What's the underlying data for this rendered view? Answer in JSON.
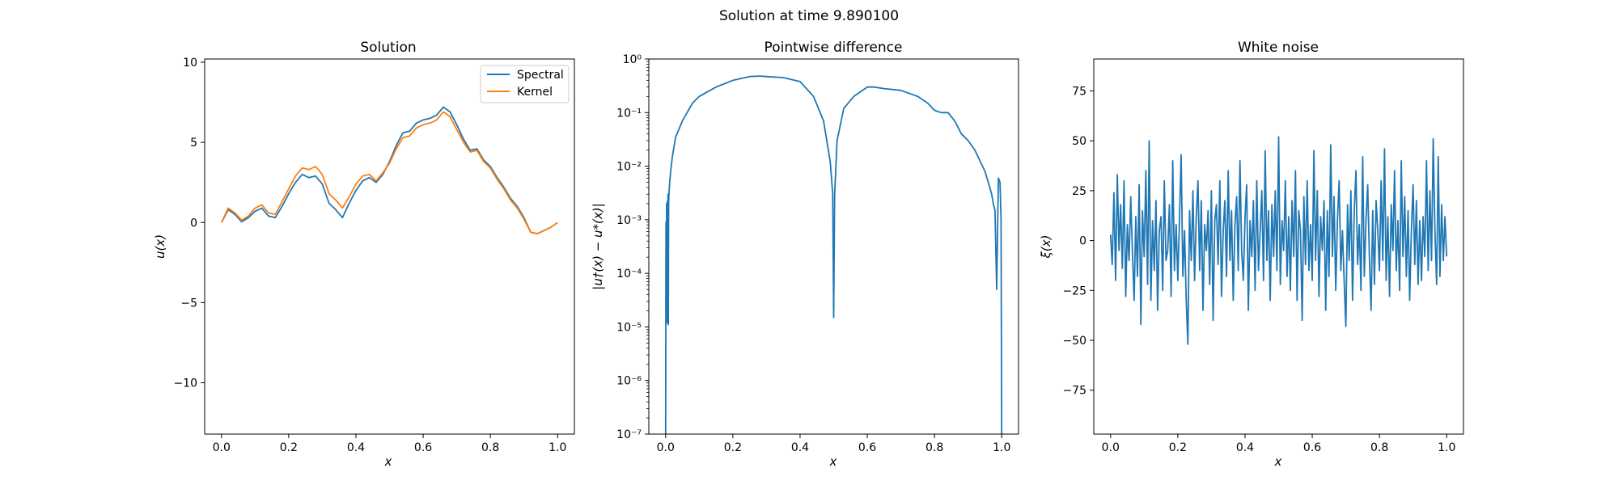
{
  "figure": {
    "suptitle": "Solution at time 9.890100"
  },
  "colors": {
    "spectral": "#1f77b4",
    "kernel": "#ff7f0e",
    "difference": "#1f77b4",
    "noise": "#1f77b4"
  },
  "chart_data": [
    {
      "type": "line",
      "title": "Solution",
      "xlabel": "x",
      "ylabel": "u(x)",
      "xlim": [
        -0.05,
        1.05
      ],
      "ylim": [
        -13.2,
        10.2
      ],
      "xticks": [
        0.0,
        0.2,
        0.4,
        0.6,
        0.8,
        1.0
      ],
      "xtick_labels": [
        "0.0",
        "0.2",
        "0.4",
        "0.6",
        "0.8",
        "1.0"
      ],
      "yticks": [
        10,
        5,
        0,
        -5,
        -10
      ],
      "ytick_labels": [
        "10",
        "5",
        "0",
        "−5",
        "−10"
      ],
      "legend": {
        "placement": "top-right",
        "entries": [
          "Spectral",
          "Kernel"
        ]
      },
      "series": [
        {
          "name": "Spectral",
          "x": [
            0.0,
            0.02,
            0.04,
            0.06,
            0.08,
            0.1,
            0.12,
            0.14,
            0.16,
            0.18,
            0.2,
            0.22,
            0.24,
            0.26,
            0.28,
            0.3,
            0.32,
            0.34,
            0.36,
            0.38,
            0.4,
            0.42,
            0.44,
            0.46,
            0.48,
            0.5,
            0.52,
            0.54,
            0.56,
            0.58,
            0.6,
            0.62,
            0.64,
            0.66,
            0.68,
            0.7,
            0.72,
            0.74,
            0.76,
            0.78,
            0.8,
            0.82,
            0.84,
            0.86,
            0.88,
            0.9,
            0.92,
            0.94,
            0.96,
            0.98,
            1.0
          ],
          "y": [
            0.0,
            0.8,
            0.5,
            0.05,
            0.3,
            0.7,
            0.9,
            0.4,
            0.3,
            1.0,
            1.8,
            2.5,
            3.0,
            2.8,
            2.9,
            2.4,
            1.2,
            0.8,
            0.3,
            1.2,
            2.0,
            2.6,
            2.8,
            2.5,
            3.0,
            3.8,
            4.8,
            5.6,
            5.7,
            6.2,
            6.4,
            6.5,
            6.7,
            7.2,
            6.9,
            6.1,
            5.2,
            4.5,
            4.6,
            3.9,
            3.5,
            2.8,
            2.2,
            1.5,
            1.0,
            0.3,
            -0.6,
            -0.7,
            -0.5,
            -0.3,
            0.0
          ]
        },
        {
          "name": "Kernel",
          "x": [
            0.0,
            0.02,
            0.04,
            0.06,
            0.08,
            0.1,
            0.12,
            0.14,
            0.16,
            0.18,
            0.2,
            0.22,
            0.24,
            0.26,
            0.28,
            0.3,
            0.32,
            0.34,
            0.36,
            0.38,
            0.4,
            0.42,
            0.44,
            0.46,
            0.48,
            0.5,
            0.52,
            0.54,
            0.56,
            0.58,
            0.6,
            0.62,
            0.64,
            0.66,
            0.68,
            0.7,
            0.72,
            0.74,
            0.76,
            0.78,
            0.8,
            0.82,
            0.84,
            0.86,
            0.88,
            0.9,
            0.92,
            0.94,
            0.96,
            0.98,
            1.0
          ],
          "y": [
            0.0,
            0.9,
            0.6,
            0.15,
            0.4,
            0.9,
            1.1,
            0.6,
            0.5,
            1.3,
            2.1,
            2.9,
            3.4,
            3.3,
            3.5,
            3.0,
            1.8,
            1.4,
            0.9,
            1.6,
            2.4,
            2.9,
            3.0,
            2.6,
            3.1,
            3.7,
            4.6,
            5.3,
            5.4,
            5.9,
            6.1,
            6.2,
            6.4,
            6.9,
            6.6,
            5.8,
            5.0,
            4.4,
            4.5,
            3.8,
            3.4,
            2.7,
            2.1,
            1.4,
            0.9,
            0.2,
            -0.6,
            -0.7,
            -0.5,
            -0.3,
            0.0
          ]
        }
      ]
    },
    {
      "type": "line",
      "title": "Pointwise difference",
      "xlabel": "x",
      "ylabel": "|u†(x) − u*(x)|",
      "yscale": "log",
      "xlim": [
        -0.05,
        1.05
      ],
      "ylim": [
        1e-07,
        1.0
      ],
      "xticks": [
        0.0,
        0.2,
        0.4,
        0.6,
        0.8,
        1.0
      ],
      "xtick_labels": [
        "0.0",
        "0.2",
        "0.4",
        "0.6",
        "0.8",
        "1.0"
      ],
      "yticks": [
        1e-07,
        1e-06,
        1e-05,
        0.0001,
        0.001,
        0.01,
        0.1,
        1.0
      ],
      "ytick_labels": [
        "10⁻⁷",
        "10⁻⁶",
        "10⁻⁵",
        "10⁻⁴",
        "10⁻³",
        "10⁻²",
        "10⁻¹",
        "10⁰"
      ],
      "series": [
        {
          "x": [
            0.0,
            0.001,
            0.002,
            0.003,
            0.004,
            0.005,
            0.006,
            0.007,
            0.008,
            0.009,
            0.01,
            0.012,
            0.015,
            0.02,
            0.03,
            0.05,
            0.08,
            0.1,
            0.15,
            0.2,
            0.25,
            0.28,
            0.3,
            0.35,
            0.4,
            0.44,
            0.47,
            0.49,
            0.497,
            0.5,
            0.503,
            0.51,
            0.53,
            0.56,
            0.6,
            0.62,
            0.65,
            0.7,
            0.75,
            0.78,
            0.8,
            0.82,
            0.84,
            0.86,
            0.88,
            0.9,
            0.92,
            0.95,
            0.96,
            0.97,
            0.975,
            0.98,
            0.985,
            0.99,
            0.995,
            0.998,
            1.0
          ],
          "y": [
            1e-07,
            0.0009,
            1.5e-05,
            0.002,
            1.2e-05,
            0.0022,
            1.3e-05,
            0.003,
            1.1e-05,
            0.002,
            0.003,
            0.005,
            0.008,
            0.015,
            0.035,
            0.07,
            0.15,
            0.2,
            0.3,
            0.4,
            0.47,
            0.48,
            0.47,
            0.45,
            0.38,
            0.2,
            0.07,
            0.012,
            0.003,
            1.5e-05,
            0.003,
            0.03,
            0.12,
            0.2,
            0.3,
            0.3,
            0.28,
            0.26,
            0.2,
            0.15,
            0.11,
            0.1,
            0.1,
            0.07,
            0.04,
            0.03,
            0.02,
            0.008,
            0.005,
            0.003,
            0.002,
            0.0015,
            5e-05,
            0.006,
            0.005,
            0.001,
            1e-07
          ]
        }
      ]
    },
    {
      "type": "line",
      "title": "White noise",
      "xlabel": "x",
      "ylabel": "ξ(x)",
      "xlim": [
        -0.05,
        1.05
      ],
      "ylim": [
        -97,
        91
      ],
      "xticks": [
        0.0,
        0.2,
        0.4,
        0.6,
        0.8,
        1.0
      ],
      "xtick_labels": [
        "0.0",
        "0.2",
        "0.4",
        "0.6",
        "0.8",
        "1.0"
      ],
      "yticks": [
        75,
        50,
        25,
        0,
        -25,
        -50,
        -75
      ],
      "ytick_labels": [
        "75",
        "50",
        "25",
        "0",
        "−25",
        "−50",
        "−75"
      ],
      "series": [
        {
          "x": [
            0.0,
            0.005,
            0.01,
            0.015,
            0.02,
            0.025,
            0.03,
            0.035,
            0.04,
            0.045,
            0.05,
            0.055,
            0.06,
            0.065,
            0.07,
            0.075,
            0.08,
            0.085,
            0.09,
            0.095,
            0.1,
            0.105,
            0.11,
            0.115,
            0.12,
            0.125,
            0.13,
            0.135,
            0.14,
            0.145,
            0.15,
            0.155,
            0.16,
            0.165,
            0.17,
            0.175,
            0.18,
            0.185,
            0.19,
            0.195,
            0.2,
            0.205,
            0.21,
            0.215,
            0.22,
            0.225,
            0.23,
            0.235,
            0.24,
            0.245,
            0.25,
            0.255,
            0.26,
            0.265,
            0.27,
            0.275,
            0.28,
            0.285,
            0.29,
            0.295,
            0.3,
            0.305,
            0.31,
            0.315,
            0.32,
            0.325,
            0.33,
            0.335,
            0.34,
            0.345,
            0.35,
            0.355,
            0.36,
            0.365,
            0.37,
            0.375,
            0.38,
            0.385,
            0.39,
            0.395,
            0.4,
            0.405,
            0.41,
            0.415,
            0.42,
            0.425,
            0.43,
            0.435,
            0.44,
            0.445,
            0.45,
            0.455,
            0.46,
            0.465,
            0.47,
            0.475,
            0.48,
            0.485,
            0.49,
            0.495,
            0.5,
            0.505,
            0.51,
            0.515,
            0.52,
            0.525,
            0.53,
            0.535,
            0.54,
            0.545,
            0.55,
            0.555,
            0.56,
            0.565,
            0.57,
            0.575,
            0.58,
            0.585,
            0.59,
            0.595,
            0.6,
            0.605,
            0.61,
            0.615,
            0.62,
            0.625,
            0.63,
            0.635,
            0.64,
            0.645,
            0.65,
            0.655,
            0.66,
            0.665,
            0.67,
            0.675,
            0.68,
            0.685,
            0.69,
            0.695,
            0.7,
            0.705,
            0.71,
            0.715,
            0.72,
            0.725,
            0.73,
            0.735,
            0.74,
            0.745,
            0.75,
            0.755,
            0.76,
            0.765,
            0.77,
            0.775,
            0.78,
            0.785,
            0.79,
            0.795,
            0.8,
            0.805,
            0.81,
            0.815,
            0.82,
            0.825,
            0.83,
            0.835,
            0.84,
            0.845,
            0.85,
            0.855,
            0.86,
            0.865,
            0.87,
            0.875,
            0.88,
            0.885,
            0.89,
            0.895,
            0.9,
            0.905,
            0.91,
            0.915,
            0.92,
            0.925,
            0.93,
            0.935,
            0.94,
            0.945,
            0.95,
            0.955,
            0.96,
            0.965,
            0.97,
            0.975,
            0.98,
            0.985,
            0.99,
            0.995,
            1.0
          ],
          "y": [
            3,
            -12,
            24,
            -20,
            33,
            -5,
            18,
            -14,
            30,
            -28,
            8,
            -10,
            22,
            -6,
            -30,
            12,
            -18,
            28,
            -42,
            15,
            -8,
            35,
            -22,
            50,
            -30,
            10,
            -15,
            20,
            -35,
            5,
            12,
            -25,
            30,
            -10,
            -5,
            18,
            -28,
            40,
            -15,
            8,
            -20,
            10,
            43,
            -18,
            5,
            -30,
            -52,
            15,
            -10,
            25,
            -20,
            12,
            30,
            -15,
            20,
            -35,
            8,
            -5,
            15,
            -22,
            25,
            -40,
            10,
            18,
            -12,
            30,
            -28,
            5,
            20,
            -18,
            35,
            -10,
            15,
            -30,
            8,
            22,
            -15,
            40,
            -5,
            -20,
            12,
            28,
            -35,
            10,
            -8,
            20,
            -25,
            30,
            -15,
            5,
            25,
            -20,
            45,
            -10,
            15,
            -30,
            18,
            -8,
            25,
            -15,
            52,
            -22,
            10,
            -5,
            30,
            -18,
            12,
            -25,
            20,
            -8,
            35,
            -30,
            15,
            5,
            -40,
            22,
            -12,
            30,
            -15,
            8,
            -20,
            45,
            -10,
            25,
            -28,
            12,
            -5,
            20,
            -35,
            15,
            -18,
            48,
            -8,
            22,
            -25,
            10,
            30,
            -15,
            5,
            -20,
            -43,
            18,
            -10,
            25,
            -30,
            15,
            35,
            -12,
            8,
            -25,
            42,
            -18,
            10,
            28,
            -8,
            -35,
            15,
            -22,
            20,
            5,
            -15,
            30,
            -10,
            46,
            -20,
            12,
            -28,
            18,
            -5,
            35,
            -15,
            10,
            -25,
            40,
            -8,
            22,
            -18,
            15,
            -30,
            5,
            28,
            -12,
            20,
            -22,
            10,
            -20,
            12,
            -8,
            40,
            -15,
            25,
            -10,
            51,
            5,
            -22,
            42,
            -18,
            18,
            -10,
            12,
            -8
          ]
        }
      ]
    }
  ]
}
